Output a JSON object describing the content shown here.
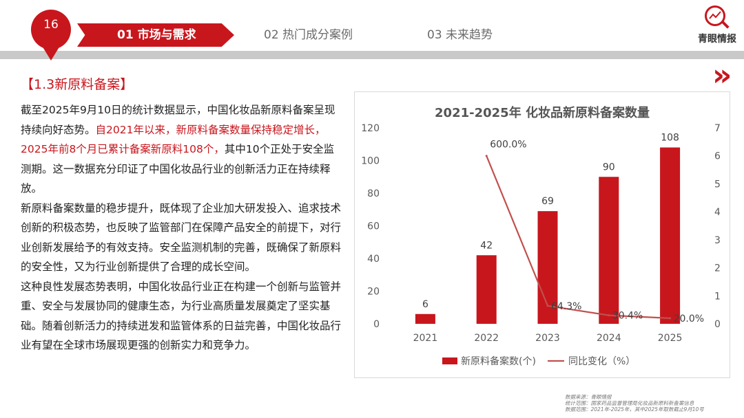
{
  "header": {
    "page_number": "16",
    "tabs": [
      {
        "label": "01 市场与需求",
        "active": true
      },
      {
        "label": "02 热门成分案例",
        "active": false
      },
      {
        "label": "03 未来趋势",
        "active": false
      }
    ],
    "logo_text": "青眼情报",
    "accent_color": "#c8161d"
  },
  "section": {
    "title": "【1.3新原料备案】"
  },
  "body": {
    "p1_a": "截至2025年9月10日的统计数据显示，中国化妆品新原料备案呈现持续向好态势。",
    "p1_b": "自2021年以来，新原料备案数量保持稳定增长，2025年前8个月已累计备案新原料108个，",
    "p1_c": "其中10个正处于安全监测期。这一数据充分印证了中国化妆品行业的创新活力正在持续释放。",
    "p2": "新原料备案数量的稳步提升，既体现了企业加大研发投入、追求技术创新的积极态势，也反映了监管部门在保障产品安全的前提下，对行业创新发展给予的有效支持。安全监测机制的完善，既确保了新原料的安全性，又为行业创新提供了合理的成长空间。",
    "p3": "这种良性发展态势表明，中国化妆品行业正在构建一个创新与监管并重、安全与发展协同的健康生态，为行业高质量发展奠定了坚实基础。随着创新活力的持续迸发和监管体系的日益完善，中国化妆品行业有望在全球市场展现更强的创新实力和竞争力。"
  },
  "chart_data": {
    "type": "bar",
    "title": "2021-2025年 化妆品新原料备案数量",
    "categories": [
      "2021",
      "2022",
      "2023",
      "2024",
      "2025"
    ],
    "series": [
      {
        "name": "新原料备案数(个)",
        "type": "bar",
        "axis": "left",
        "color": "#c8161d",
        "values": [
          6,
          42,
          69,
          90,
          108
        ]
      },
      {
        "name": "同比变化（%）",
        "type": "line",
        "axis": "right",
        "color": "#c0504d",
        "values": [
          null,
          6.0,
          0.643,
          0.304,
          0.2
        ],
        "labels": [
          "",
          "600.0%",
          "64.3%",
          "30.4%",
          "20.0%"
        ]
      }
    ],
    "ylim_left": [
      0,
      120
    ],
    "yticks_left": [
      0,
      20,
      40,
      60,
      80,
      100,
      120
    ],
    "ylim_right": [
      0,
      7
    ],
    "yticks_right": [
      0,
      1,
      2,
      3,
      4,
      5,
      6,
      7
    ],
    "grid": false,
    "legend": "bottom"
  },
  "footer": {
    "line1": "数据来源：青眼情报",
    "line2": "统计范围：国家药品监督管理局化妆品新原料新备案信息",
    "line3": "数据范围：2021年-2025年，其中2025年取数截止9月10号"
  }
}
